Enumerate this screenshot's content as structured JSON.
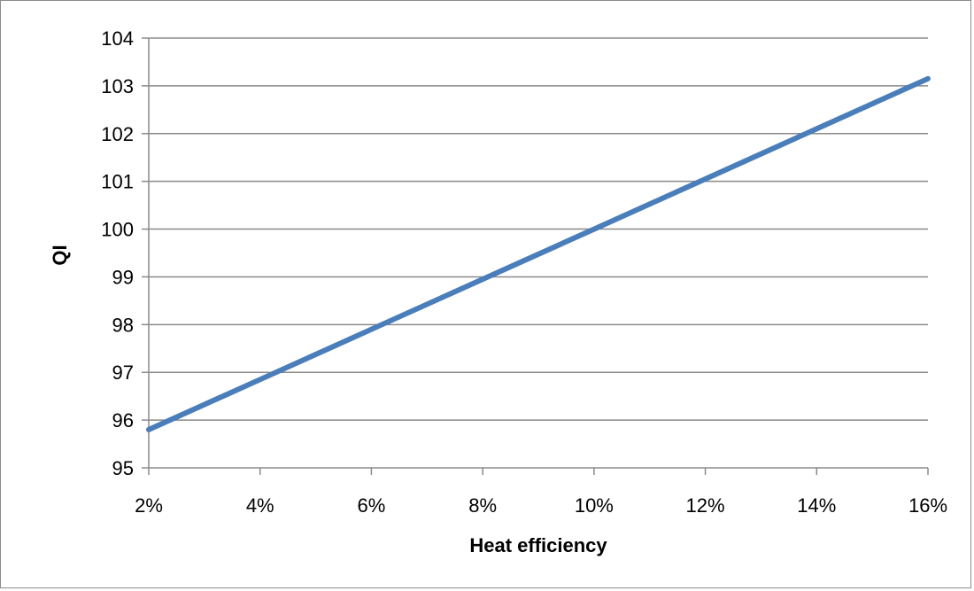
{
  "chart_data": {
    "type": "line",
    "title": "",
    "xlabel": "Heat efficiency",
    "ylabel": "QI",
    "x": [
      0.02,
      0.04,
      0.06,
      0.08,
      0.1,
      0.12,
      0.14,
      0.16
    ],
    "x_tick_labels": [
      "2%",
      "4%",
      "6%",
      "8%",
      "10%",
      "12%",
      "14%",
      "16%"
    ],
    "y_ticks": [
      95,
      96,
      97,
      98,
      99,
      100,
      101,
      102,
      103,
      104
    ],
    "xlim": [
      0.02,
      0.16
    ],
    "ylim": [
      95,
      104
    ],
    "grid": "horizontal",
    "legend": "none",
    "series": [
      {
        "color": "#4a7ebb",
        "values": [
          95.8,
          96.85,
          97.9,
          98.95,
          100.0,
          101.05,
          102.1,
          103.15
        ]
      }
    ]
  }
}
